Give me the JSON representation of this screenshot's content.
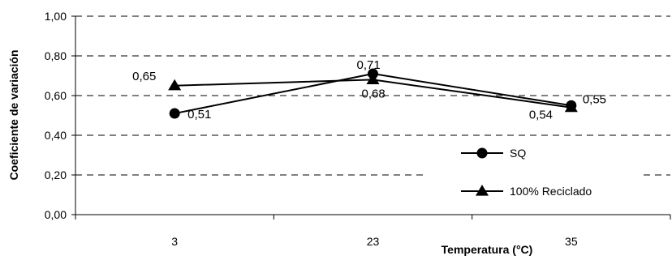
{
  "chart_data": {
    "type": "line",
    "categories": [
      "3",
      "23",
      "35"
    ],
    "series": [
      {
        "name": "SQ",
        "values": [
          0.51,
          0.71,
          0.55
        ],
        "labels": [
          "0,51",
          "0,71",
          "0,55"
        ],
        "marker": "circle"
      },
      {
        "name": "100% Reciclado",
        "values": [
          0.65,
          0.68,
          0.54
        ],
        "labels": [
          "0,65",
          "0,68",
          "0,54"
        ],
        "marker": "triangle"
      }
    ],
    "title": "",
    "xlabel": "Temperatura (°C)",
    "ylabel": "Coeficiente de variación",
    "ylim": [
      0,
      1
    ],
    "yticks": [
      0,
      0.2,
      0.4,
      0.6,
      0.8,
      1.0
    ],
    "ytick_labels": [
      "0,00",
      "0,20",
      "0,40",
      "0,60",
      "0,80",
      "1,00"
    ],
    "grid": true,
    "legend_position": "bottom-right",
    "colors": {
      "line": "#000000",
      "marker": "#000000"
    }
  }
}
